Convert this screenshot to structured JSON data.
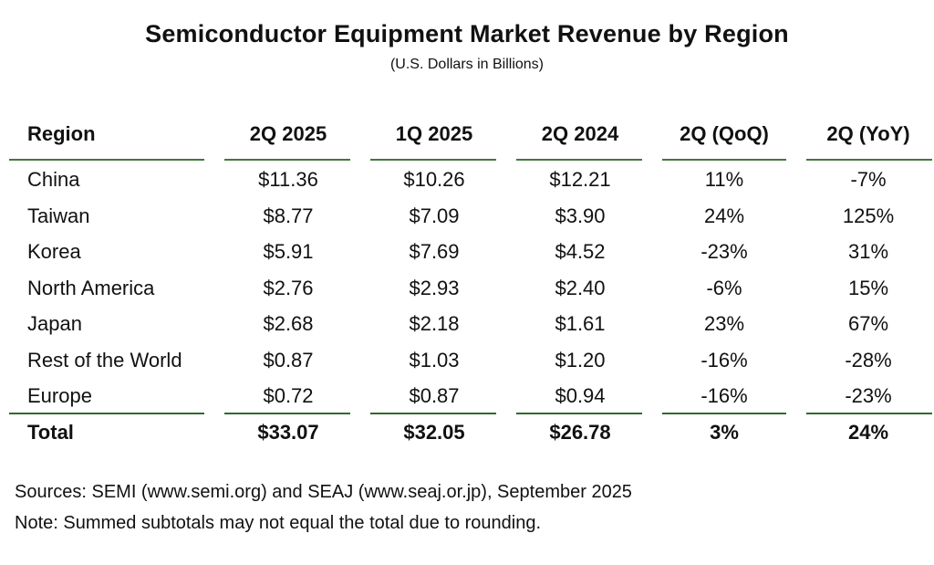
{
  "title": "Semiconductor Equipment Market Revenue by Region",
  "subtitle": "(U.S. Dollars in Billions)",
  "chart_data": {
    "type": "table",
    "columns": [
      "Region",
      "2Q 2025",
      "1Q 2025",
      "2Q 2024",
      "2Q (QoQ)",
      "2Q (YoY)"
    ],
    "rows": [
      [
        "China",
        "$11.36",
        "$10.26",
        "$12.21",
        "11%",
        "-7%"
      ],
      [
        "Taiwan",
        "$8.77",
        "$7.09",
        "$3.90",
        "24%",
        "125%"
      ],
      [
        "Korea",
        "$5.91",
        "$7.69",
        "$4.52",
        "-23%",
        "31%"
      ],
      [
        "North America",
        "$2.76",
        "$2.93",
        "$2.40",
        "-6%",
        "15%"
      ],
      [
        "Japan",
        "$2.68",
        "$2.18",
        "$1.61",
        "23%",
        "67%"
      ],
      [
        "Rest of the World",
        "$0.87",
        "$1.03",
        "$1.20",
        "-16%",
        "-28%"
      ],
      [
        "Europe",
        "$0.72",
        "$0.87",
        "$0.94",
        "-16%",
        "-23%"
      ]
    ],
    "total": [
      "Total",
      "$33.07",
      "$32.05",
      "$26.78",
      "3%",
      "24%"
    ]
  },
  "colors": {
    "rule": "#3f7a3a"
  },
  "footer": {
    "sources": "Sources: SEMI (www.semi.org) and SEAJ (www.seaj.or.jp), September 2025",
    "note": "Note: Summed subtotals may not equal the total due to rounding."
  }
}
